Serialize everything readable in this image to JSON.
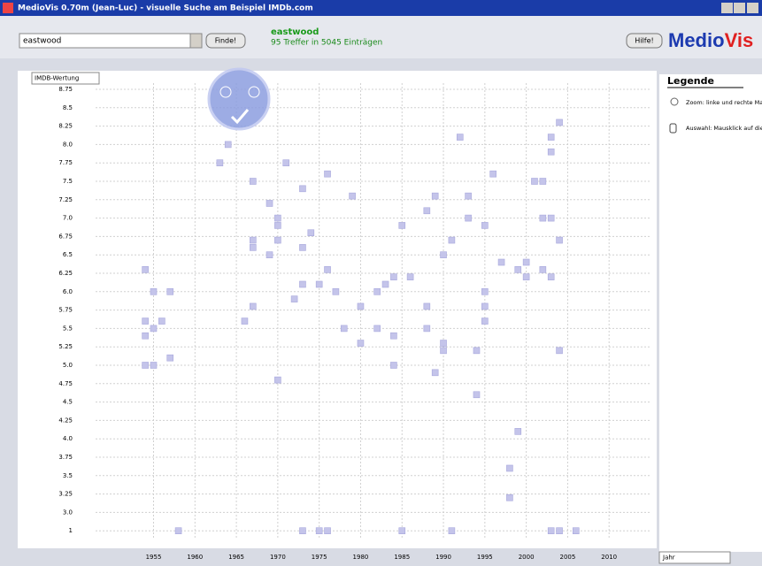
{
  "window": {
    "title": "MedioVis 0.70m (Jean-Luc) - visuelle Suche am Beispiel IMDb.com"
  },
  "toolbar": {
    "search": "eastwood",
    "find": "Finde!",
    "query": "eastwood",
    "hits": "95 Treffer in 5045 Einträgen",
    "help": "Hilfe!",
    "logo_a": "Medio",
    "logo_b": "Vis"
  },
  "legend": {
    "title": "Legende",
    "zoom": "Zoom: linke und rechte Maustaste",
    "select": "Auswahl: Mausklick auf die Symbole"
  },
  "selectors": {
    "y": "IMDB-Wertung",
    "x": "Jahr"
  },
  "chart_data": {
    "type": "scatter",
    "color": "#c4c4ea",
    "grid": true,
    "xlim": [
      1948,
      2015
    ],
    "xticks": [
      1955,
      1960,
      1965,
      1970,
      1975,
      1980,
      1985,
      1990,
      1995,
      2000,
      2005,
      2010
    ],
    "ylim": [
      1,
      8.75
    ],
    "yticks": [
      8.75,
      8.5,
      8.25,
      {
        "value": 8,
        "label": "8.0"
      },
      7.75,
      7.5,
      7.25,
      {
        "value": 7,
        "label": "7.0"
      },
      6.75,
      6.5,
      6.25,
      {
        "value": 6,
        "label": "6.0"
      },
      5.75,
      5.5,
      5.25,
      {
        "value": 5,
        "label": "5.0"
      },
      4.75,
      4.5,
      4.25,
      {
        "value": 4,
        "label": "4.0"
      },
      3.75,
      3.5,
      3.25,
      {
        "value": 3,
        "label": "3.0"
      },
      1
    ],
    "x": [
      1954,
      1955,
      1957,
      1954,
      1956,
      1955,
      1954,
      1957,
      1954,
      1955,
      1958,
      1964,
      1963,
      1967,
      1971,
      1973,
      1976,
      1979,
      1969,
      1970,
      1970,
      1967,
      1967,
      1970,
      1974,
      1973,
      1969,
      1976,
      1975,
      1973,
      1977,
      1972,
      1967,
      1966,
      1978,
      1980,
      1980,
      1970,
      1973,
      1975,
      1976,
      1982,
      1983,
      1984,
      1986,
      1982,
      1984,
      1985,
      1984,
      1985,
      1988,
      1989,
      1992,
      1993,
      1993,
      1991,
      1990,
      1988,
      1988,
      1990,
      1990,
      1989,
      1994,
      1994,
      1995,
      1995,
      1995,
      1995,
      1991,
      1996,
      1997,
      1999,
      1998,
      1998,
      1999,
      2001,
      2002,
      2000,
      2000,
      2002,
      2003,
      2002,
      2003,
      2004,
      2003,
      2003,
      2004,
      2004,
      2003,
      2004,
      2006
    ],
    "values": [
      6.3,
      6.0,
      6.0,
      5.6,
      5.6,
      5.5,
      5.4,
      5.1,
      5.0,
      5.0,
      1,
      8.0,
      7.75,
      7.5,
      7.75,
      7.4,
      7.6,
      7.3,
      7.2,
      7.0,
      6.9,
      6.7,
      6.6,
      6.7,
      6.8,
      6.6,
      6.5,
      6.3,
      6.1,
      6.1,
      6.0,
      5.9,
      5.8,
      5.6,
      5.5,
      5.8,
      5.3,
      4.8,
      1,
      1,
      1,
      6.0,
      6.1,
      6.2,
      6.2,
      5.5,
      5.4,
      6.9,
      5.0,
      1,
      7.1,
      7.3,
      8.1,
      7.3,
      7.0,
      6.7,
      6.5,
      5.8,
      5.5,
      5.3,
      5.2,
      4.9,
      5.2,
      4.6,
      6.9,
      6.0,
      5.8,
      5.6,
      1,
      7.6,
      6.4,
      4.1,
      3.6,
      3.2,
      6.3,
      7.5,
      7.5,
      6.4,
      6.2,
      6.3,
      6.2,
      7.0,
      7.0,
      8.3,
      8.1,
      7.9,
      6.7,
      5.2,
      1,
      1,
      1
    ]
  }
}
